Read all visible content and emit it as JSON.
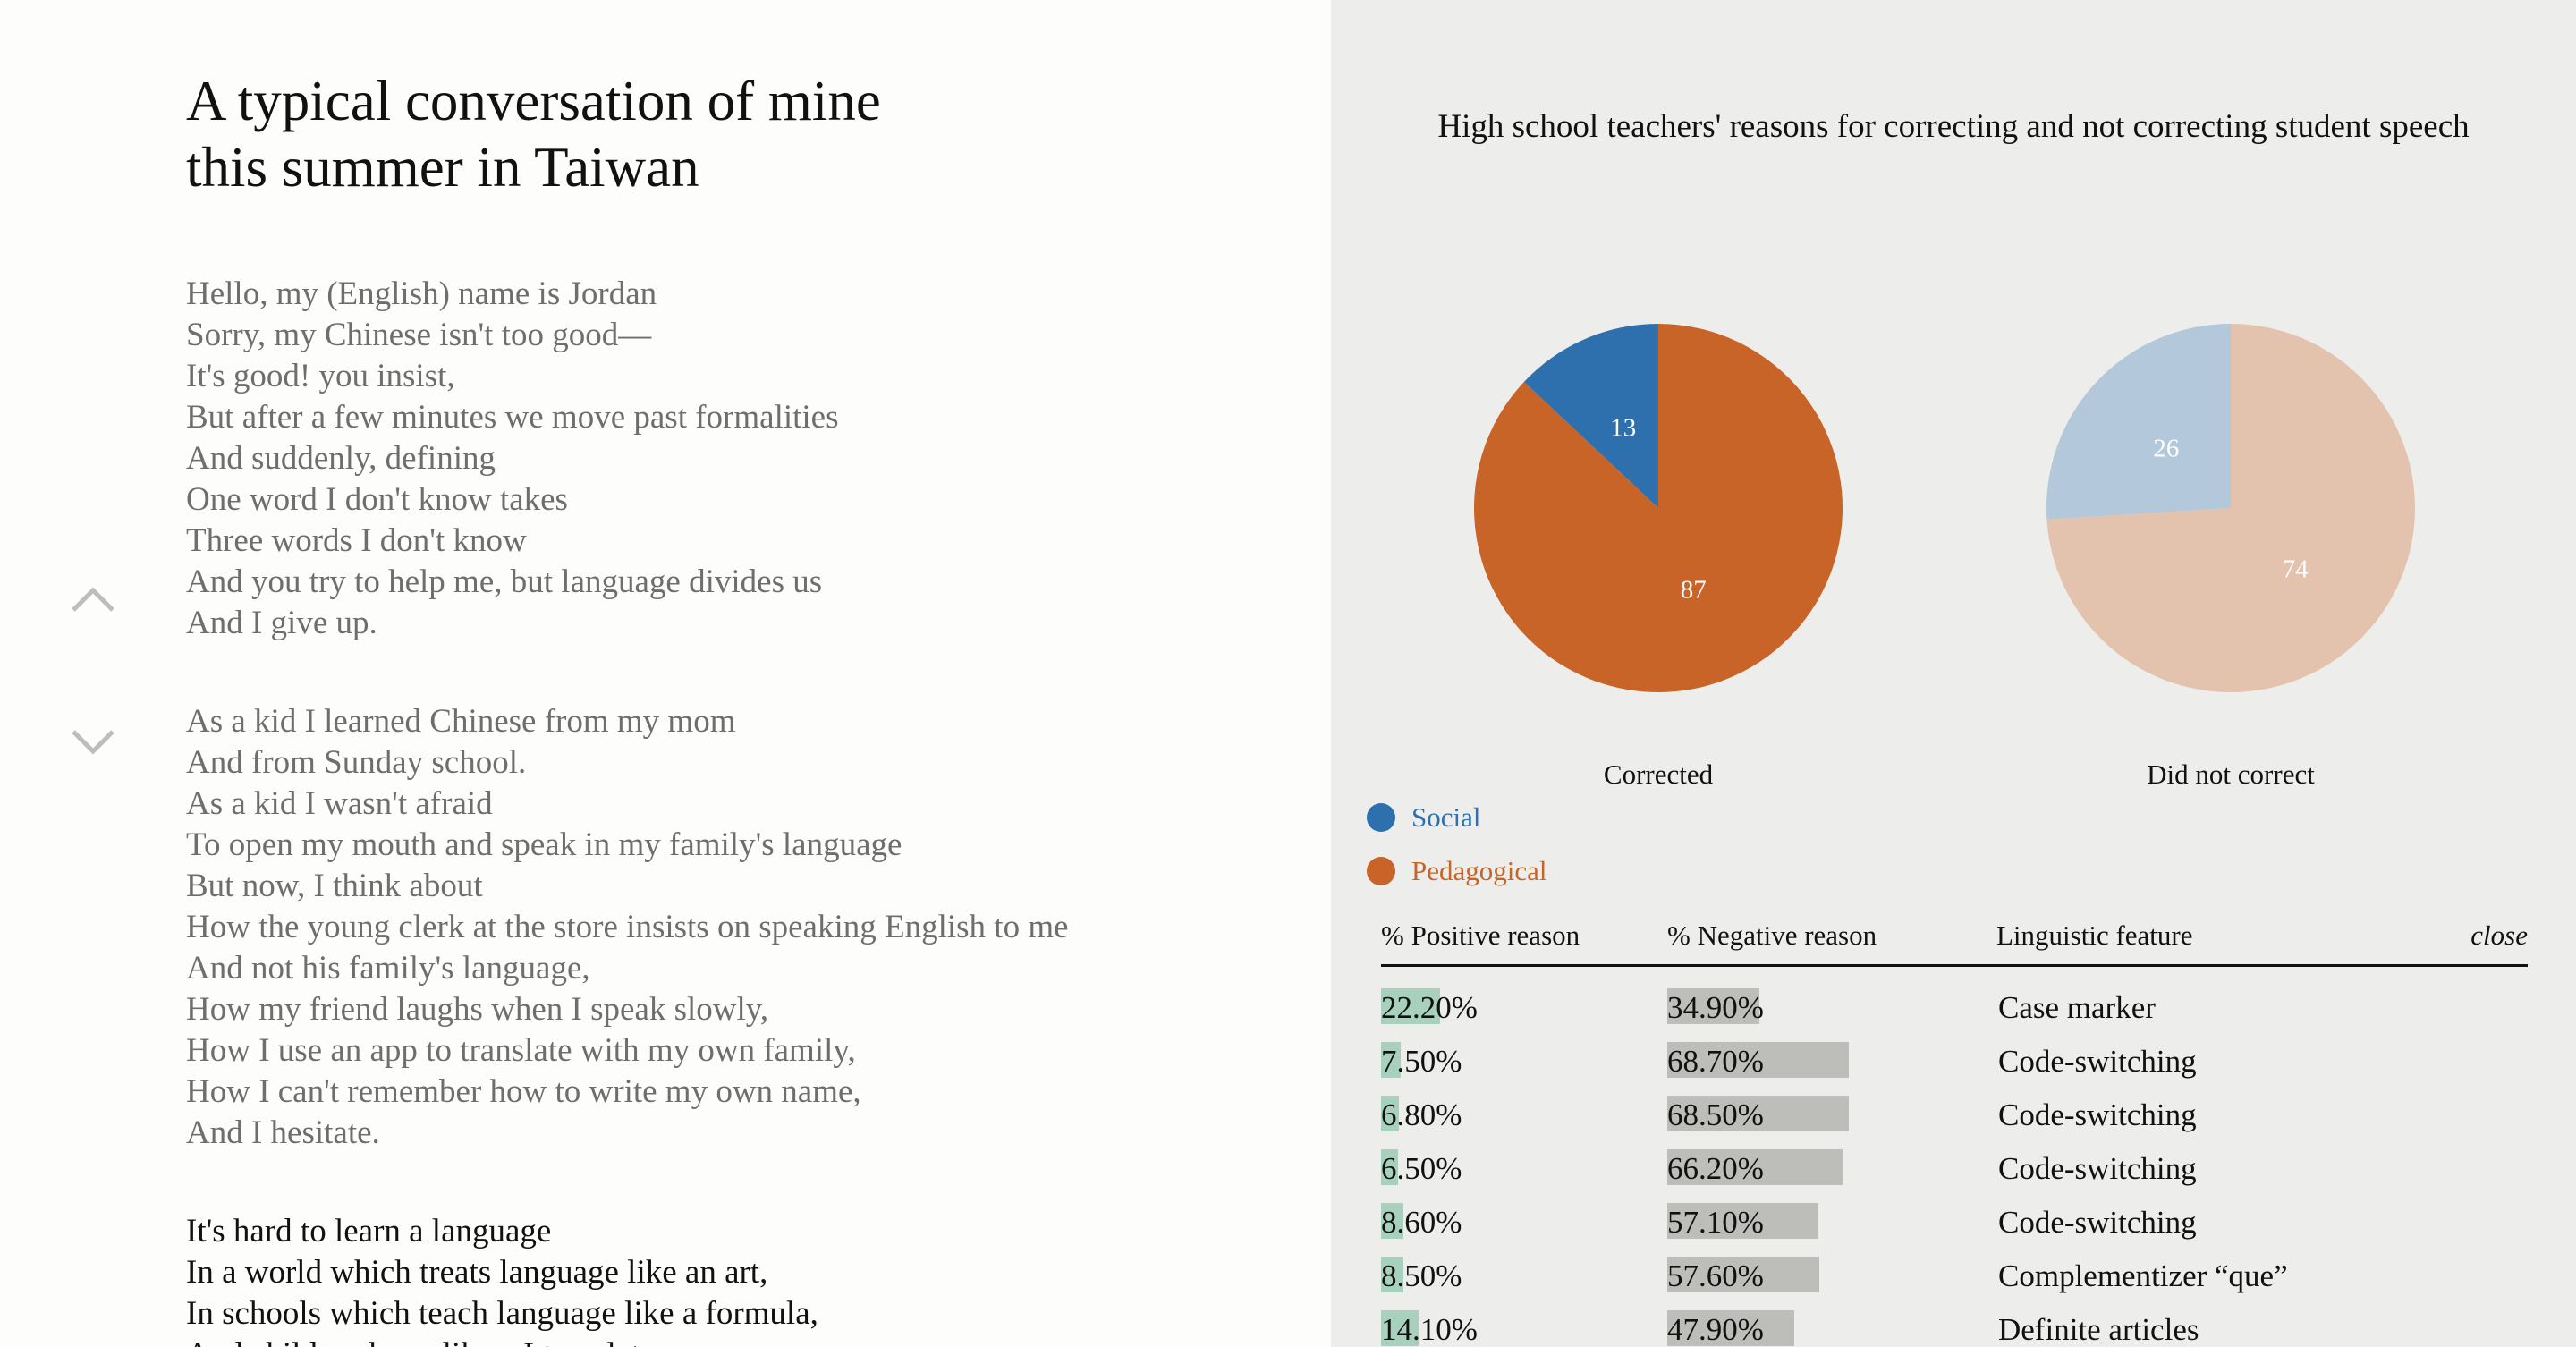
{
  "essay": {
    "title_line1": "A typical conversation of mine",
    "title_line2": "this summer in Taiwan",
    "stanzas": [
      {
        "lines": [
          "Hello, my (English) name is Jordan",
          "Sorry, my Chinese isn't too good—",
          "It's good! you insist,",
          "But after a few minutes we move past formalities",
          "And suddenly, defining",
          "One word I don't know takes",
          "Three words I don't know",
          "And you try to help me, but language divides us",
          "And I give up."
        ]
      },
      {
        "lines": [
          "As a kid I learned Chinese from my mom",
          "And from Sunday school.",
          "As a kid I wasn't afraid",
          "To open my mouth and speak in my family's language",
          "But now, I think about",
          "How the young clerk at the store insists on speaking English to me",
          "And not his family's language,",
          "How my friend laughs when I speak slowly,",
          "How I use an app to translate with my own family,",
          "How I can't remember how to write my own name,",
          "And I hesitate."
        ]
      },
      {
        "lines": [
          "It's hard to learn a language",
          "In a world which treats language like an art,",
          "In schools which teach language like a formula,",
          "And children learn like a I translate"
        ]
      }
    ],
    "nav": {
      "up_icon": "chevron-up-icon",
      "down_icon": "chevron-down-icon"
    }
  },
  "panel": {
    "chart_title": "High school teachers' reasons for correcting and not correcting student speech",
    "legend": [
      {
        "label": "Social",
        "color": "#2e6fae"
      },
      {
        "label": "Pedagogical",
        "color": "#c86428"
      }
    ],
    "table": {
      "headers": {
        "positive": "% Positive reason",
        "negative": "% Negative reason",
        "feature": "Linguistic feature",
        "close": "close"
      },
      "rows": [
        {
          "positive": "22.20%",
          "positive_val": 22.2,
          "negative": "34.90%",
          "negative_val": 34.9,
          "feature": "Case marker"
        },
        {
          "positive": "7.50%",
          "positive_val": 7.5,
          "negative": "68.70%",
          "negative_val": 68.7,
          "feature": "Code-switching"
        },
        {
          "positive": "6.80%",
          "positive_val": 6.8,
          "negative": "68.50%",
          "negative_val": 68.5,
          "feature": "Code-switching"
        },
        {
          "positive": "6.50%",
          "positive_val": 6.5,
          "negative": "66.20%",
          "negative_val": 66.2,
          "feature": "Code-switching"
        },
        {
          "positive": "8.60%",
          "positive_val": 8.6,
          "negative": "57.10%",
          "negative_val": 57.1,
          "feature": "Code-switching"
        },
        {
          "positive": "8.50%",
          "positive_val": 8.5,
          "negative": "57.60%",
          "negative_val": 57.6,
          "feature": "Complementizer “que”"
        },
        {
          "positive": "14.10%",
          "positive_val": 14.1,
          "negative": "47.90%",
          "negative_val": 47.9,
          "feature": "Definite articles"
        }
      ],
      "positive_color": "#a8d1bd",
      "negative_color": "#bdbdb9"
    }
  },
  "chart_data": [
    {
      "type": "pie",
      "title": "Corrected",
      "categories": [
        "Social",
        "Pedagogical"
      ],
      "values": [
        13,
        87
      ],
      "colors": [
        "#2e6fae",
        "#c86428"
      ]
    },
    {
      "type": "pie",
      "title": "Did not correct",
      "categories": [
        "Social",
        "Pedagogical"
      ],
      "values": [
        26,
        74
      ],
      "colors": [
        "#b3c8da",
        "#e3c3ae"
      ]
    }
  ]
}
